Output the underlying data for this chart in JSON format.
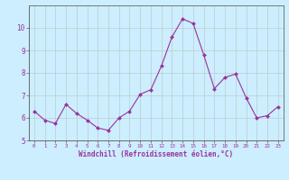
{
  "x": [
    0,
    1,
    2,
    3,
    4,
    5,
    6,
    7,
    8,
    9,
    10,
    11,
    12,
    13,
    14,
    15,
    16,
    17,
    18,
    19,
    20,
    21,
    22,
    23
  ],
  "y": [
    6.3,
    5.9,
    5.75,
    6.6,
    6.2,
    5.9,
    5.55,
    5.45,
    6.0,
    6.3,
    7.05,
    7.25,
    8.3,
    9.6,
    10.4,
    10.2,
    8.8,
    7.3,
    7.8,
    7.95,
    6.9,
    6.0,
    6.1,
    6.5
  ],
  "line_color": "#993399",
  "marker_color": "#993399",
  "bg_color": "#cceeff",
  "grid_color": "#bbcccc",
  "axis_color": "#993399",
  "tick_color": "#993399",
  "xlabel": "Windchill (Refroidissement éolien,°C)",
  "ylim": [
    5,
    11
  ],
  "xlim": [
    -0.5,
    23.5
  ],
  "yticks": [
    5,
    6,
    7,
    8,
    9,
    10
  ],
  "xticks": [
    0,
    1,
    2,
    3,
    4,
    5,
    6,
    7,
    8,
    9,
    10,
    11,
    12,
    13,
    14,
    15,
    16,
    17,
    18,
    19,
    20,
    21,
    22,
    23
  ]
}
